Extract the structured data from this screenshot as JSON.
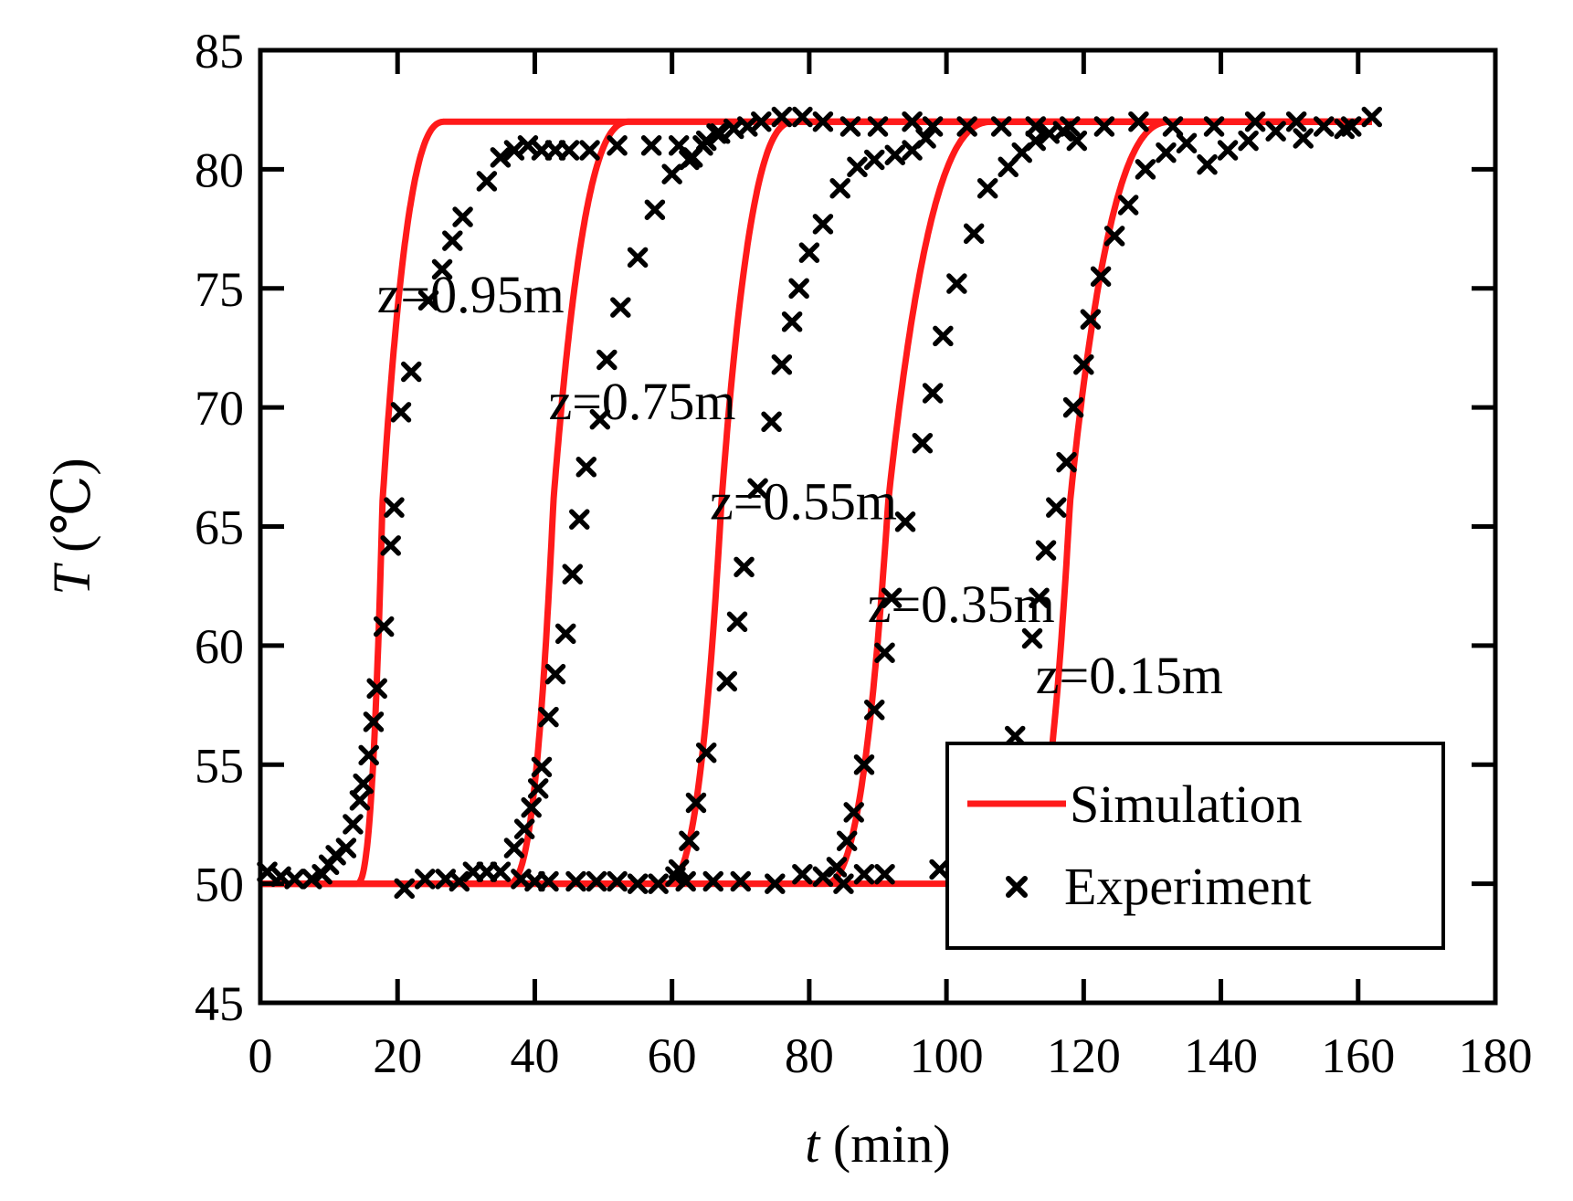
{
  "chart_data": {
    "type": "line",
    "title": "",
    "xlabel_symbol": "t",
    "xlabel_unit": " (min)",
    "ylabel_symbol": "T",
    "ylabel_unit": " (℃)",
    "xlim": [
      0,
      180
    ],
    "ylim": [
      45,
      85
    ],
    "xticks": [
      0,
      20,
      40,
      60,
      80,
      100,
      120,
      140,
      160,
      180
    ],
    "yticks": [
      45,
      50,
      55,
      60,
      65,
      70,
      75,
      80,
      85
    ],
    "xtick_labels": [
      "0",
      "20",
      "40",
      "60",
      "80",
      "100",
      "120",
      "140",
      "160",
      "180"
    ],
    "ytick_labels": [
      "45",
      "50",
      "55",
      "60",
      "65",
      "70",
      "75",
      "80",
      "85"
    ],
    "grid": false,
    "legend": {
      "position": "bottom-right",
      "entries": [
        {
          "label": "Simulation",
          "style": "red-line",
          "color": "#ff1a1a"
        },
        {
          "label": "Experiment",
          "style": "x-marker",
          "color": "#000000"
        }
      ]
    },
    "annotations": [
      {
        "text": "z=0.95m",
        "x": 17,
        "y": 74
      },
      {
        "text": "z=0.75m",
        "x": 42,
        "y": 69.5
      },
      {
        "text": "z=0.55m",
        "x": 65.5,
        "y": 65.3
      },
      {
        "text": "z=0.35m",
        "x": 88.5,
        "y": 61
      },
      {
        "text": "z=0.15m",
        "x": 113,
        "y": 58
      }
    ],
    "series": [
      {
        "name": "Simulation",
        "kind": "line",
        "color": "#ff1a1a",
        "curves": [
          {
            "label": "z=0.95m",
            "t_start": 14,
            "t_mid": 17.8,
            "t_end": 27,
            "y_min": 50,
            "y_max": 82
          },
          {
            "label": "z=0.75m",
            "t_start": 36,
            "t_mid": 42.7,
            "t_end": 54,
            "y_min": 50,
            "y_max": 82
          },
          {
            "label": "z=0.55m",
            "t_start": 59,
            "t_mid": 67.2,
            "t_end": 78,
            "y_min": 50,
            "y_max": 82
          },
          {
            "label": "z=0.35m",
            "t_start": 82,
            "t_mid": 91.5,
            "t_end": 107,
            "y_min": 50,
            "y_max": 82
          },
          {
            "label": "z=0.15m",
            "t_start": 110,
            "t_mid": 118,
            "t_end": 133,
            "y_min": 50,
            "y_max": 82
          }
        ]
      },
      {
        "name": "Experiment",
        "kind": "scatter",
        "color": "#000000",
        "points": [
          [
            1,
            50.5
          ],
          [
            3,
            50.3
          ],
          [
            5,
            50.2
          ],
          [
            7.5,
            50.2
          ],
          [
            9,
            50.4
          ],
          [
            10,
            50.8
          ],
          [
            11,
            51.2
          ],
          [
            12.5,
            51.5
          ],
          [
            13.5,
            52.5
          ],
          [
            14.5,
            53.5
          ],
          [
            15,
            54.2
          ],
          [
            15.8,
            55.4
          ],
          [
            16.5,
            56.8
          ],
          [
            17,
            58.2
          ],
          [
            18,
            60.8
          ],
          [
            19,
            64.2
          ],
          [
            19.5,
            65.8
          ],
          [
            20.5,
            69.8
          ],
          [
            22,
            71.5
          ],
          [
            24.5,
            74.5
          ],
          [
            26.5,
            75.8
          ],
          [
            28,
            77
          ],
          [
            29.5,
            78
          ],
          [
            33,
            79.5
          ],
          [
            35,
            80.5
          ],
          [
            37,
            80.8
          ],
          [
            39,
            81
          ],
          [
            41,
            80.8
          ],
          [
            43,
            80.8
          ],
          [
            45,
            80.8
          ],
          [
            48,
            80.8
          ],
          [
            52,
            81
          ],
          [
            57,
            81
          ],
          [
            61,
            81
          ],
          [
            63,
            80.5
          ],
          [
            65,
            81.2
          ],
          [
            67,
            81.5
          ],
          [
            69,
            81.7
          ],
          [
            71,
            81.8
          ],
          [
            73,
            82
          ],
          [
            76,
            82.2
          ],
          [
            79,
            82.2
          ],
          [
            82,
            82
          ],
          [
            86,
            81.8
          ],
          [
            90,
            81.8
          ],
          [
            95,
            82
          ],
          [
            98,
            81.8
          ],
          [
            103,
            81.8
          ],
          [
            108,
            81.8
          ],
          [
            113,
            81.8
          ],
          [
            118,
            81.8
          ],
          [
            123,
            81.8
          ],
          [
            128,
            82
          ],
          [
            133,
            81.8
          ],
          [
            139,
            81.8
          ],
          [
            145,
            82
          ],
          [
            151,
            82
          ],
          [
            155,
            81.8
          ],
          [
            159,
            81.8
          ],
          [
            162,
            82.2
          ],
          [
            21,
            49.8
          ],
          [
            24,
            50.2
          ],
          [
            27,
            50.2
          ],
          [
            29,
            50.1
          ],
          [
            31,
            50.5
          ],
          [
            33,
            50.5
          ],
          [
            35,
            50.5
          ],
          [
            38,
            50.2
          ],
          [
            40,
            50.1
          ],
          [
            42,
            50.1
          ],
          [
            37,
            51.5
          ],
          [
            38.5,
            52.3
          ],
          [
            39.5,
            53.2
          ],
          [
            40.5,
            54
          ],
          [
            41,
            54.9
          ],
          [
            42,
            57
          ],
          [
            43,
            58.8
          ],
          [
            44.5,
            60.5
          ],
          [
            45.5,
            63
          ],
          [
            46.5,
            65.3
          ],
          [
            47.5,
            67.5
          ],
          [
            49.5,
            69.5
          ],
          [
            50.5,
            72
          ],
          [
            52.5,
            74.2
          ],
          [
            55,
            76.3
          ],
          [
            57.5,
            78.3
          ],
          [
            60,
            79.8
          ],
          [
            62.5,
            80.4
          ],
          [
            64.5,
            81
          ],
          [
            66.5,
            81.5
          ],
          [
            46,
            50.1
          ],
          [
            49,
            50.1
          ],
          [
            52,
            50.1
          ],
          [
            55,
            50
          ],
          [
            58,
            50
          ],
          [
            60.5,
            50.3
          ],
          [
            62,
            50.1
          ],
          [
            66,
            50.1
          ],
          [
            70,
            50.1
          ],
          [
            75,
            50
          ],
          [
            61,
            50.6
          ],
          [
            62.5,
            51.8
          ],
          [
            63.5,
            53.4
          ],
          [
            65,
            55.5
          ],
          [
            68,
            58.5
          ],
          [
            69.5,
            61
          ],
          [
            70.5,
            63.3
          ],
          [
            72.5,
            66.6
          ],
          [
            74.5,
            69.4
          ],
          [
            76,
            71.8
          ],
          [
            77.5,
            73.6
          ],
          [
            78.5,
            75
          ],
          [
            80,
            76.5
          ],
          [
            82,
            77.7
          ],
          [
            84.5,
            79.2
          ],
          [
            87,
            80.1
          ],
          [
            89.5,
            80.4
          ],
          [
            92.5,
            80.6
          ],
          [
            95,
            80.8
          ],
          [
            97,
            81.3
          ],
          [
            79,
            50.4
          ],
          [
            82,
            50.3
          ],
          [
            85,
            50
          ],
          [
            88,
            50.4
          ],
          [
            91,
            50.4
          ],
          [
            99,
            50.6
          ],
          [
            84,
            50.7
          ],
          [
            85.5,
            51.8
          ],
          [
            86.5,
            53
          ],
          [
            88,
            55
          ],
          [
            89.5,
            57.3
          ],
          [
            91,
            59.7
          ],
          [
            92,
            62
          ],
          [
            94,
            65.2
          ],
          [
            96.5,
            68.5
          ],
          [
            98,
            70.6
          ],
          [
            99.5,
            73
          ],
          [
            101.5,
            75.2
          ],
          [
            104,
            77.3
          ],
          [
            106,
            79.2
          ],
          [
            109,
            80.1
          ],
          [
            111,
            80.7
          ],
          [
            113,
            81.2
          ],
          [
            115,
            81.5
          ],
          [
            117,
            81.6
          ],
          [
            119,
            81.2
          ],
          [
            110,
            56.2
          ],
          [
            112.5,
            60.3
          ],
          [
            113.5,
            62
          ],
          [
            114.5,
            64
          ],
          [
            116,
            65.8
          ],
          [
            117.5,
            67.7
          ],
          [
            118.5,
            70
          ],
          [
            120,
            71.8
          ],
          [
            121,
            73.7
          ],
          [
            122.5,
            75.5
          ],
          [
            124.5,
            77.2
          ],
          [
            126.5,
            78.5
          ],
          [
            129,
            80
          ],
          [
            132,
            80.7
          ],
          [
            135,
            81.1
          ],
          [
            138,
            80.2
          ],
          [
            141,
            80.8
          ],
          [
            144,
            81.2
          ],
          [
            148,
            81.6
          ],
          [
            152,
            81.3
          ],
          [
            158,
            81.7
          ]
        ]
      }
    ]
  }
}
